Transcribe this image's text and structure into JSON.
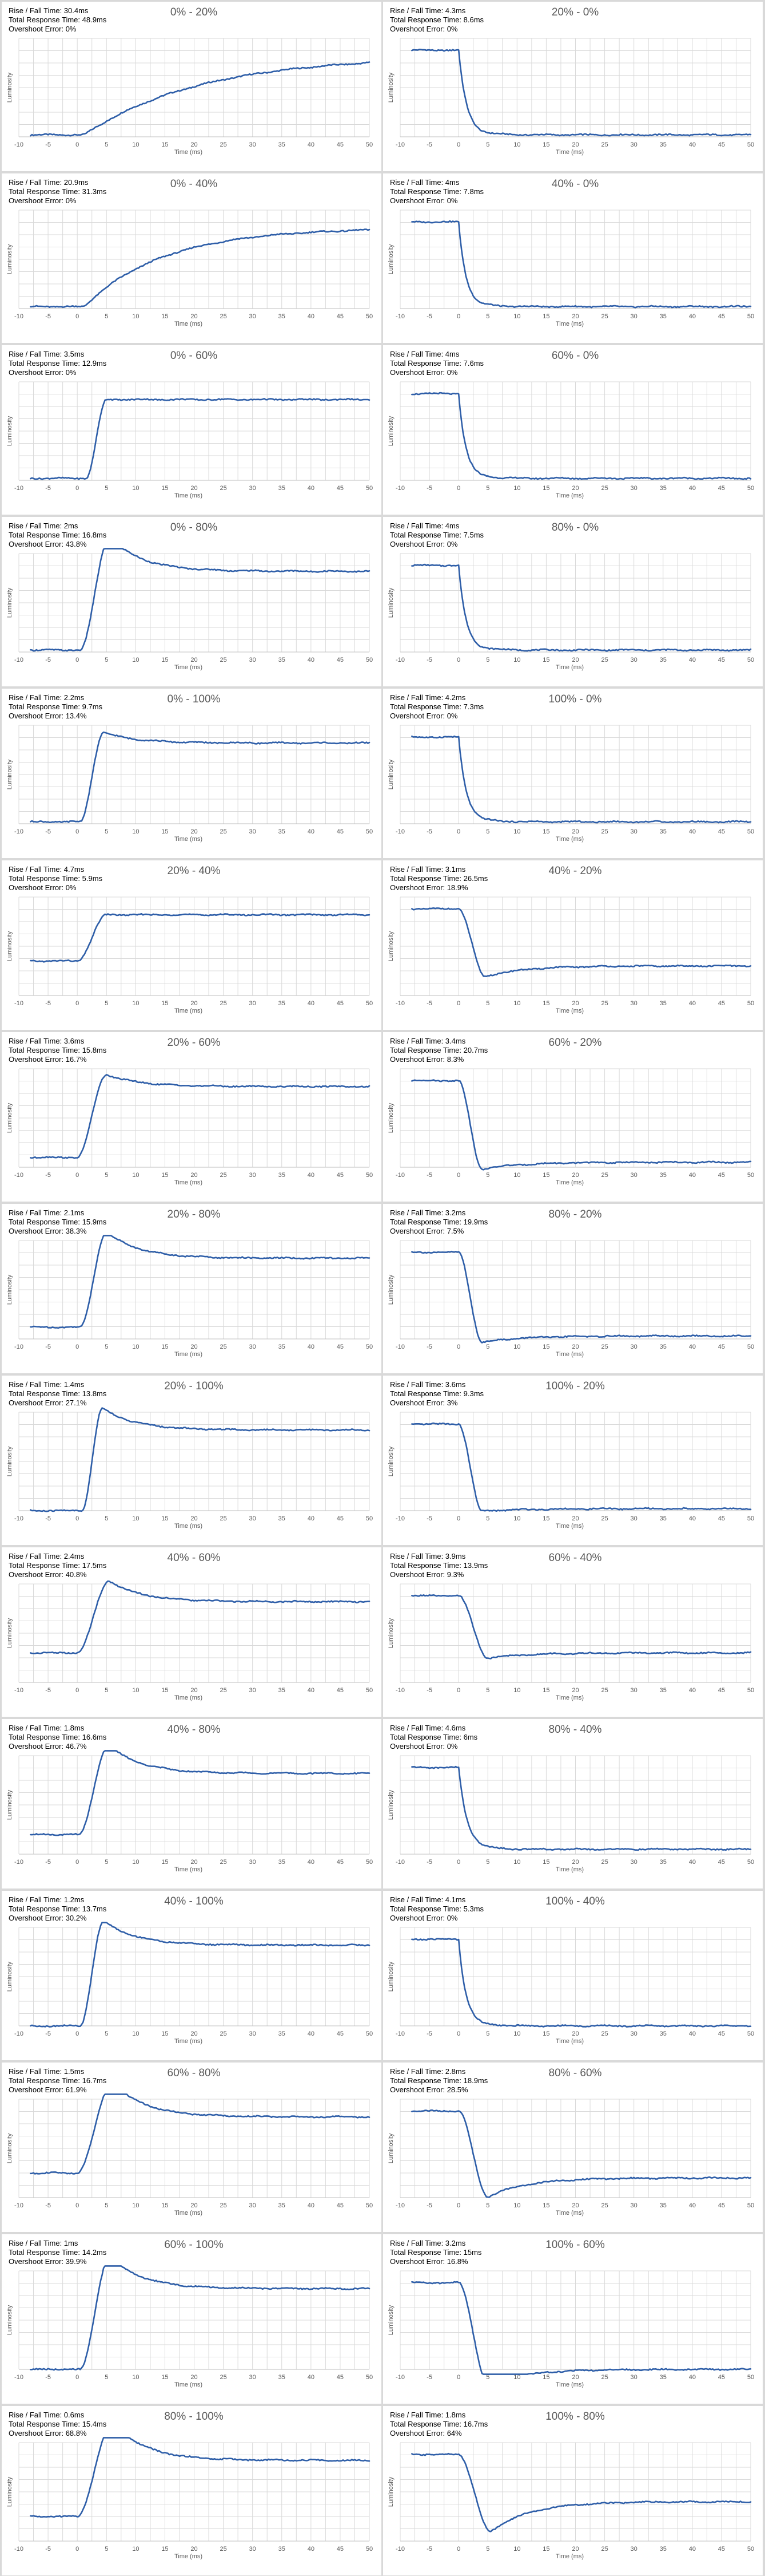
{
  "labels": {
    "rise_fall": "Rise / Fall Time: ",
    "total": "Total Response Time: ",
    "overshoot": "Overshoot Error: ",
    "xlabel": "Time (ms)",
    "ylabel": "Luminosity"
  },
  "colors": {
    "line": "#2e5ea8",
    "grid": "#d9d9d9",
    "background": "#d9d9d9"
  },
  "chart_data": [
    {
      "type": "line",
      "title": "0% - 20%",
      "rise_fall": "30.4ms",
      "total": "48.9ms",
      "overshoot": "0%",
      "xlabel": "Time (ms)",
      "ylabel": "Luminosity",
      "xlim": [
        -10,
        50
      ],
      "xticks": [
        -10,
        -5,
        0,
        5,
        10,
        15,
        20,
        25,
        30,
        35,
        40,
        45,
        50
      ],
      "grid": true,
      "legend": "none",
      "shape": {
        "kind": "rise",
        "t_start": 0,
        "t_dur": 30.4,
        "mode": "slow"
      }
    },
    {
      "type": "line",
      "title": "20% - 0%",
      "rise_fall": "4.3ms",
      "total": "8.6ms",
      "overshoot": "0%",
      "xlabel": "Time (ms)",
      "ylabel": "Luminosity",
      "xlim": [
        -10,
        50
      ],
      "xticks": [
        -10,
        -5,
        0,
        5,
        10,
        15,
        20,
        25,
        30,
        35,
        40,
        45,
        50
      ],
      "grid": true,
      "legend": "none",
      "shape": {
        "kind": "fall",
        "t_start": 0,
        "t_dur": 4.3,
        "overshoot": 0
      }
    },
    {
      "type": "line",
      "title": "0% - 40%",
      "rise_fall": "20.9ms",
      "total": "31.3ms",
      "overshoot": "0%",
      "xlabel": "Time (ms)",
      "ylabel": "Luminosity",
      "xlim": [
        -10,
        50
      ],
      "xticks": [
        -10,
        -5,
        0,
        5,
        10,
        15,
        20,
        25,
        30,
        35,
        40,
        45,
        50
      ],
      "grid": true,
      "legend": "none",
      "shape": {
        "kind": "rise",
        "t_start": 0,
        "t_dur": 20.9,
        "mode": "slow"
      }
    },
    {
      "type": "line",
      "title": "40% - 0%",
      "rise_fall": "4ms",
      "total": "7.8ms",
      "overshoot": "0%",
      "xlabel": "Time (ms)",
      "ylabel": "Luminosity",
      "xlim": [
        -10,
        50
      ],
      "xticks": [
        -10,
        -5,
        0,
        5,
        10,
        15,
        20,
        25,
        30,
        35,
        40,
        45,
        50
      ],
      "grid": true,
      "legend": "none",
      "shape": {
        "kind": "fall",
        "t_start": 0,
        "t_dur": 4.0,
        "overshoot": 0
      }
    },
    {
      "type": "line",
      "title": "0% - 60%",
      "rise_fall": "3.5ms",
      "total": "12.9ms",
      "overshoot": "0%",
      "xlabel": "Time (ms)",
      "ylabel": "Luminosity",
      "xlim": [
        -10,
        50
      ],
      "xticks": [
        -10,
        -5,
        0,
        5,
        10,
        15,
        20,
        25,
        30,
        35,
        40,
        45,
        50
      ],
      "grid": true,
      "legend": "none",
      "shape": {
        "kind": "rise",
        "t_start": 1.5,
        "t_dur": 3.5,
        "overshoot": 0
      }
    },
    {
      "type": "line",
      "title": "60% - 0%",
      "rise_fall": "4ms",
      "total": "7.6ms",
      "overshoot": "0%",
      "xlabel": "Time (ms)",
      "ylabel": "Luminosity",
      "xlim": [
        -10,
        50
      ],
      "xticks": [
        -10,
        -5,
        0,
        5,
        10,
        15,
        20,
        25,
        30,
        35,
        40,
        45,
        50
      ],
      "grid": true,
      "legend": "none",
      "shape": {
        "kind": "fall",
        "t_start": 0,
        "t_dur": 4.0,
        "overshoot": 0
      }
    },
    {
      "type": "line",
      "title": "0% - 80%",
      "rise_fall": "2ms",
      "total": "16.8ms",
      "overshoot": "43.8%",
      "xlabel": "Time (ms)",
      "ylabel": "Luminosity",
      "xlim": [
        -10,
        50
      ],
      "xticks": [
        -10,
        -5,
        0,
        5,
        10,
        15,
        20,
        25,
        30,
        35,
        40,
        45,
        50
      ],
      "grid": true,
      "legend": "none",
      "shape": {
        "kind": "rise",
        "t_start": 0.5,
        "t_dur": 5.0,
        "overshoot": 0.438
      }
    },
    {
      "type": "line",
      "title": "80% - 0%",
      "rise_fall": "4ms",
      "total": "7.5ms",
      "overshoot": "0%",
      "xlabel": "Time (ms)",
      "ylabel": "Luminosity",
      "xlim": [
        -10,
        50
      ],
      "xticks": [
        -10,
        -5,
        0,
        5,
        10,
        15,
        20,
        25,
        30,
        35,
        40,
        45,
        50
      ],
      "grid": true,
      "legend": "none",
      "shape": {
        "kind": "fall",
        "t_start": 0,
        "t_dur": 4.0,
        "overshoot": 0
      }
    },
    {
      "type": "line",
      "title": "0% - 100%",
      "rise_fall": "2.2ms",
      "total": "9.7ms",
      "overshoot": "13.4%",
      "xlabel": "Time (ms)",
      "ylabel": "Luminosity",
      "xlim": [
        -10,
        50
      ],
      "xticks": [
        -10,
        -5,
        0,
        5,
        10,
        15,
        20,
        25,
        30,
        35,
        40,
        45,
        50
      ],
      "grid": true,
      "legend": "none",
      "shape": {
        "kind": "rise",
        "t_start": 0.5,
        "t_dur": 4.0,
        "overshoot": 0.134
      }
    },
    {
      "type": "line",
      "title": "100% - 0%",
      "rise_fall": "4.2ms",
      "total": "7.3ms",
      "overshoot": "0%",
      "xlabel": "Time (ms)",
      "ylabel": "Luminosity",
      "xlim": [
        -10,
        50
      ],
      "xticks": [
        -10,
        -5,
        0,
        5,
        10,
        15,
        20,
        25,
        30,
        35,
        40,
        45,
        50
      ],
      "grid": true,
      "legend": "none",
      "shape": {
        "kind": "fall",
        "t_start": 0,
        "t_dur": 4.2,
        "overshoot": 0
      }
    },
    {
      "type": "line",
      "title": "20% - 40%",
      "rise_fall": "4.7ms",
      "total": "5.9ms",
      "overshoot": "0%",
      "xlabel": "Time (ms)",
      "ylabel": "Luminosity",
      "xlim": [
        -10,
        50
      ],
      "xticks": [
        -10,
        -5,
        0,
        5,
        10,
        15,
        20,
        25,
        30,
        35,
        40,
        45,
        50
      ],
      "grid": true,
      "legend": "none",
      "shape": {
        "kind": "rise",
        "t_start": 0,
        "t_dur": 5.0,
        "overshoot": 0,
        "base": 0.35
      }
    },
    {
      "type": "line",
      "title": "40% - 20%",
      "rise_fall": "3.1ms",
      "total": "26.5ms",
      "overshoot": "18.9%",
      "xlabel": "Time (ms)",
      "ylabel": "Luminosity",
      "xlim": [
        -10,
        50
      ],
      "xticks": [
        -10,
        -5,
        0,
        5,
        10,
        15,
        20,
        25,
        30,
        35,
        40,
        45,
        50
      ],
      "grid": true,
      "legend": "none",
      "shape": {
        "kind": "fall",
        "t_start": 0,
        "t_dur": 4.5,
        "overshoot": 0.189,
        "end": 0.3
      }
    },
    {
      "type": "line",
      "title": "20% - 60%",
      "rise_fall": "3.6ms",
      "total": "15.8ms",
      "overshoot": "16.7%",
      "xlabel": "Time (ms)",
      "ylabel": "Luminosity",
      "xlim": [
        -10,
        50
      ],
      "xticks": [
        -10,
        -5,
        0,
        5,
        10,
        15,
        20,
        25,
        30,
        35,
        40,
        45,
        50
      ],
      "grid": true,
      "legend": "none",
      "shape": {
        "kind": "rise",
        "t_start": 0,
        "t_dur": 5.0,
        "overshoot": 0.167,
        "base": 0.1
      }
    },
    {
      "type": "line",
      "title": "60% - 20%",
      "rise_fall": "3.4ms",
      "total": "20.7ms",
      "overshoot": "8.3%",
      "xlabel": "Time (ms)",
      "ylabel": "Luminosity",
      "xlim": [
        -10,
        50
      ],
      "xticks": [
        -10,
        -5,
        0,
        5,
        10,
        15,
        20,
        25,
        30,
        35,
        40,
        45,
        50
      ],
      "grid": true,
      "legend": "none",
      "shape": {
        "kind": "fall",
        "t_start": 0,
        "t_dur": 4.0,
        "overshoot": 0.083,
        "end": 0.05
      }
    },
    {
      "type": "line",
      "title": "20% - 80%",
      "rise_fall": "2.1ms",
      "total": "15.9ms",
      "overshoot": "38.3%",
      "xlabel": "Time (ms)",
      "ylabel": "Luminosity",
      "xlim": [
        -10,
        50
      ],
      "xticks": [
        -10,
        -5,
        0,
        5,
        10,
        15,
        20,
        25,
        30,
        35,
        40,
        45,
        50
      ],
      "grid": true,
      "legend": "none",
      "shape": {
        "kind": "rise",
        "t_start": 0.5,
        "t_dur": 4.5,
        "overshoot": 0.383,
        "base": 0.12
      }
    },
    {
      "type": "line",
      "title": "80% - 20%",
      "rise_fall": "3.2ms",
      "total": "19.9ms",
      "overshoot": "7.5%",
      "xlabel": "Time (ms)",
      "ylabel": "Luminosity",
      "xlim": [
        -10,
        50
      ],
      "xticks": [
        -10,
        -5,
        0,
        5,
        10,
        15,
        20,
        25,
        30,
        35,
        40,
        45,
        50
      ],
      "grid": true,
      "legend": "none",
      "shape": {
        "kind": "fall",
        "t_start": 0,
        "t_dur": 4.0,
        "overshoot": 0.075,
        "end": 0.03
      }
    },
    {
      "type": "line",
      "title": "20% - 100%",
      "rise_fall": "1.4ms",
      "total": "13.8ms",
      "overshoot": "27.1%",
      "xlabel": "Time (ms)",
      "ylabel": "Luminosity",
      "xlim": [
        -10,
        50
      ],
      "xticks": [
        -10,
        -5,
        0,
        5,
        10,
        15,
        20,
        25,
        30,
        35,
        40,
        45,
        50
      ],
      "grid": true,
      "legend": "none",
      "shape": {
        "kind": "rise",
        "t_start": 0.8,
        "t_dur": 3.5,
        "overshoot": 0.271,
        "base": 0.0
      }
    },
    {
      "type": "line",
      "title": "100% - 20%",
      "rise_fall": "3.6ms",
      "total": "9.3ms",
      "overshoot": "3%",
      "xlabel": "Time (ms)",
      "ylabel": "Luminosity",
      "xlim": [
        -10,
        50
      ],
      "xticks": [
        -10,
        -5,
        0,
        5,
        10,
        15,
        20,
        25,
        30,
        35,
        40,
        45,
        50
      ],
      "grid": true,
      "legend": "none",
      "shape": {
        "kind": "fall",
        "t_start": 0,
        "t_dur": 4.0,
        "overshoot": 0.03,
        "end": 0.02
      }
    },
    {
      "type": "line",
      "title": "40% - 60%",
      "rise_fall": "2.4ms",
      "total": "17.5ms",
      "overshoot": "40.8%",
      "xlabel": "Time (ms)",
      "ylabel": "Luminosity",
      "xlim": [
        -10,
        50
      ],
      "xticks": [
        -10,
        -5,
        0,
        5,
        10,
        15,
        20,
        25,
        30,
        35,
        40,
        45,
        50
      ],
      "grid": true,
      "legend": "none",
      "shape": {
        "kind": "rise",
        "t_start": 0,
        "t_dur": 5.5,
        "overshoot": 0.408,
        "base": 0.3
      }
    },
    {
      "type": "line",
      "title": "60% - 40%",
      "rise_fall": "3.9ms",
      "total": "13.9ms",
      "overshoot": "9.3%",
      "xlabel": "Time (ms)",
      "ylabel": "Luminosity",
      "xlim": [
        -10,
        50
      ],
      "xticks": [
        -10,
        -5,
        0,
        5,
        10,
        15,
        20,
        25,
        30,
        35,
        40,
        45,
        50
      ],
      "grid": true,
      "legend": "none",
      "shape": {
        "kind": "fall",
        "t_start": 0,
        "t_dur": 5.0,
        "overshoot": 0.093,
        "end": 0.3
      }
    },
    {
      "type": "line",
      "title": "40% - 80%",
      "rise_fall": "1.8ms",
      "total": "16.6ms",
      "overshoot": "46.7%",
      "xlabel": "Time (ms)",
      "ylabel": "Luminosity",
      "xlim": [
        -10,
        50
      ],
      "xticks": [
        -10,
        -5,
        0,
        5,
        10,
        15,
        20,
        25,
        30,
        35,
        40,
        45,
        50
      ],
      "grid": true,
      "legend": "none",
      "shape": {
        "kind": "rise",
        "t_start": 0.3,
        "t_dur": 5.0,
        "overshoot": 0.467,
        "base": 0.2
      }
    },
    {
      "type": "line",
      "title": "80% - 40%",
      "rise_fall": "4.6ms",
      "total": "6ms",
      "overshoot": "0%",
      "xlabel": "Time (ms)",
      "ylabel": "Luminosity",
      "xlim": [
        -10,
        50
      ],
      "xticks": [
        -10,
        -5,
        0,
        5,
        10,
        15,
        20,
        25,
        30,
        35,
        40,
        45,
        50
      ],
      "grid": true,
      "legend": "none",
      "shape": {
        "kind": "fall",
        "t_start": 0,
        "t_dur": 4.6,
        "overshoot": 0,
        "end": 0.05
      }
    },
    {
      "type": "line",
      "title": "40% - 100%",
      "rise_fall": "1.2ms",
      "total": "13.7ms",
      "overshoot": "30.2%",
      "xlabel": "Time (ms)",
      "ylabel": "Luminosity",
      "xlim": [
        -10,
        50
      ],
      "xticks": [
        -10,
        -5,
        0,
        5,
        10,
        15,
        20,
        25,
        30,
        35,
        40,
        45,
        50
      ],
      "grid": true,
      "legend": "none",
      "shape": {
        "kind": "rise",
        "t_start": 0.5,
        "t_dur": 4.0,
        "overshoot": 0.302,
        "base": 0.0
      }
    },
    {
      "type": "line",
      "title": "100% - 40%",
      "rise_fall": "4.1ms",
      "total": "5.3ms",
      "overshoot": "0%",
      "xlabel": "Time (ms)",
      "ylabel": "Luminosity",
      "xlim": [
        -10,
        50
      ],
      "xticks": [
        -10,
        -5,
        0,
        5,
        10,
        15,
        20,
        25,
        30,
        35,
        40,
        45,
        50
      ],
      "grid": true,
      "legend": "none",
      "shape": {
        "kind": "fall",
        "t_start": 0,
        "t_dur": 4.1,
        "overshoot": 0,
        "end": 0.0
      }
    },
    {
      "type": "line",
      "title": "60% - 80%",
      "rise_fall": "1.5ms",
      "total": "16.7ms",
      "overshoot": "61.9%",
      "xlabel": "Time (ms)",
      "ylabel": "Luminosity",
      "xlim": [
        -10,
        50
      ],
      "xticks": [
        -10,
        -5,
        0,
        5,
        10,
        15,
        20,
        25,
        30,
        35,
        40,
        45,
        50
      ],
      "grid": true,
      "legend": "none",
      "shape": {
        "kind": "rise",
        "t_start": 0,
        "t_dur": 6.0,
        "overshoot": 0.619,
        "base": 0.25
      }
    },
    {
      "type": "line",
      "title": "80% - 60%",
      "rise_fall": "2.8ms",
      "total": "18.9ms",
      "overshoot": "28.5%",
      "xlabel": "Time (ms)",
      "ylabel": "Luminosity",
      "xlim": [
        -10,
        50
      ],
      "xticks": [
        -10,
        -5,
        0,
        5,
        10,
        15,
        20,
        25,
        30,
        35,
        40,
        45,
        50
      ],
      "grid": true,
      "legend": "none",
      "shape": {
        "kind": "fall",
        "t_start": 0,
        "t_dur": 5.0,
        "overshoot": 0.285,
        "end": 0.2
      }
    },
    {
      "type": "line",
      "title": "60% - 100%",
      "rise_fall": "1ms",
      "total": "14.2ms",
      "overshoot": "39.9%",
      "xlabel": "Time (ms)",
      "ylabel": "Luminosity",
      "xlim": [
        -10,
        50
      ],
      "xticks": [
        -10,
        -5,
        0,
        5,
        10,
        15,
        20,
        25,
        30,
        35,
        40,
        45,
        50
      ],
      "grid": true,
      "legend": "none",
      "shape": {
        "kind": "rise",
        "t_start": 0.5,
        "t_dur": 5.0,
        "overshoot": 0.399,
        "base": 0.0
      }
    },
    {
      "type": "line",
      "title": "100% - 60%",
      "rise_fall": "3.2ms",
      "total": "15ms",
      "overshoot": "16.8%",
      "xlabel": "Time (ms)",
      "ylabel": "Luminosity",
      "xlim": [
        -10,
        50
      ],
      "xticks": [
        -10,
        -5,
        0,
        5,
        10,
        15,
        20,
        25,
        30,
        35,
        40,
        45,
        50
      ],
      "grid": true,
      "legend": "none",
      "shape": {
        "kind": "fall",
        "t_start": 0,
        "t_dur": 5.0,
        "overshoot": 0.168,
        "end": 0.0
      }
    },
    {
      "type": "line",
      "title": "80% - 100%",
      "rise_fall": "0.6ms",
      "total": "15.4ms",
      "overshoot": "68.8%",
      "xlabel": "Time (ms)",
      "ylabel": "Luminosity",
      "xlim": [
        -10,
        50
      ],
      "xticks": [
        -10,
        -5,
        0,
        5,
        10,
        15,
        20,
        25,
        30,
        35,
        40,
        45,
        50
      ],
      "grid": true,
      "legend": "none",
      "shape": {
        "kind": "rise",
        "t_start": 0,
        "t_dur": 6.0,
        "overshoot": 0.688,
        "base": 0.25
      }
    },
    {
      "type": "line",
      "title": "100% - 80%",
      "rise_fall": "1.8ms",
      "total": "16.7ms",
      "overshoot": "64%",
      "xlabel": "Time (ms)",
      "ylabel": "Luminosity",
      "xlim": [
        -10,
        50
      ],
      "xticks": [
        -10,
        -5,
        0,
        5,
        10,
        15,
        20,
        25,
        30,
        35,
        40,
        45,
        50
      ],
      "grid": true,
      "legend": "none",
      "shape": {
        "kind": "fall",
        "t_start": 0,
        "t_dur": 5.5,
        "overshoot": 0.64,
        "end": 0.4
      }
    }
  ]
}
